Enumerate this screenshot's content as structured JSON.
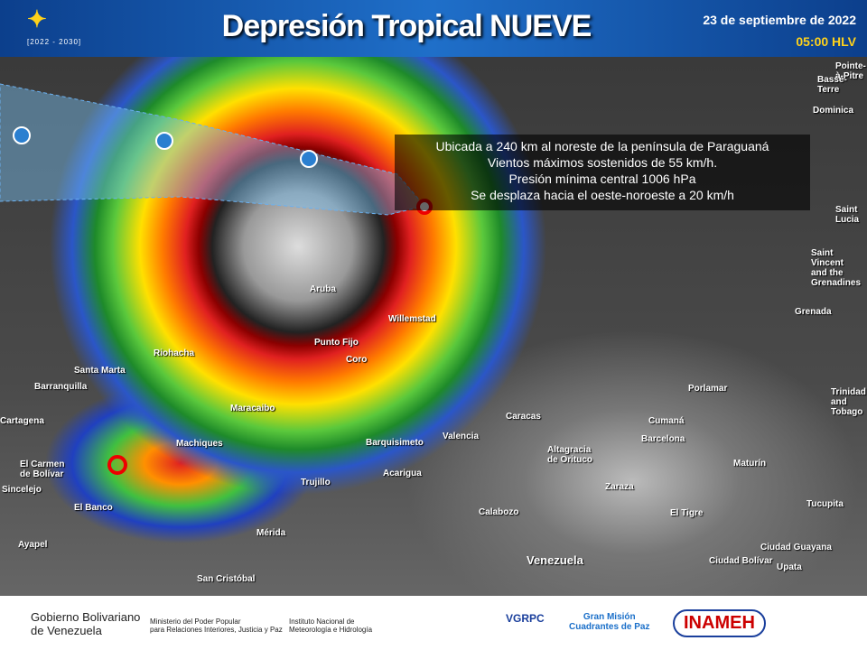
{
  "header": {
    "logo_years": "[2022 - 2030]",
    "title": "Depresión Tropical NUEVE",
    "date": "23 de septiembre de 2022",
    "time": "05:00 HLV"
  },
  "info_box": {
    "lines": [
      "Ubicada a 240 km al noreste de la península  de Paraguaná",
      "Vientos máximos sostenidos de 55 km/h.",
      "Presión mínima  central  1006 hPa",
      "Se desplaza hacia el oeste-noroeste a 20 km/h"
    ]
  },
  "map_labels": [
    "Pointe-à-Pitre",
    "Basse-Terre",
    "Dominica",
    "Saint Lucia",
    "Saint Vincent\nand the\nGrenadines",
    "Grenada",
    "Trinidad\nand Tobago",
    "Aruba",
    "Willemstad",
    "Punto Fijo",
    "Coro",
    "Riohacha",
    "Santa Marta",
    "Barranquilla",
    "Cartagena",
    "Maracaibo",
    "Machiques",
    "Barquisimeto",
    "Valencia",
    "Caracas",
    "Porlamar",
    "Cumaná",
    "Barcelona",
    "Maturín",
    "Altagracia\nde Orituco",
    "Zaraza",
    "Acarigua",
    "Trujillo",
    "Calabozo",
    "El Tigre",
    "Tucupita",
    "Ciudad Guayana",
    "Ciudad Bolívar",
    "Upata",
    "Venezuela",
    "Mérida",
    "San Cristóbal",
    "El Banco",
    "Sincelejo",
    "El Carmen\nde Bolívar",
    "Ayapel"
  ],
  "footer": {
    "gov_line1": "Gobierno Bolivariano",
    "gov_line2": "de Venezuela",
    "ministry": "Ministerio del Poder Popular\npara Relaciones Interiores, Justicia y Paz",
    "institute": "Instituto Nacional de\nMeteorología e Hidrología",
    "vgrpc": "VGRPC",
    "mission": "Gran Misión\nCuadrantes de Paz",
    "inameh": "INAMEH"
  }
}
